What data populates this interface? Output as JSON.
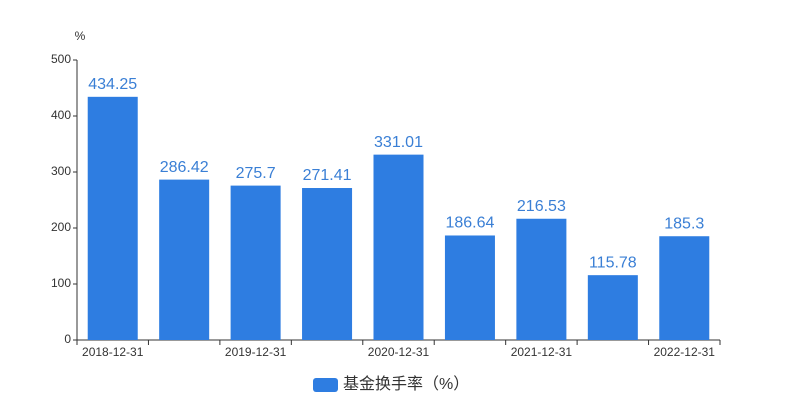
{
  "chart_data": {
    "type": "bar",
    "y_label": "%",
    "categories": [
      "2018-12-31",
      null,
      "2019-12-31",
      null,
      "2020-12-31",
      null,
      "2021-12-31",
      null,
      "2022-12-31"
    ],
    "series": [
      {
        "name": "基金换手率（%）",
        "color": "#2e7de1",
        "values": [
          434.25,
          286.42,
          275.7,
          271.41,
          331.01,
          186.64,
          216.53,
          115.78,
          185.3
        ]
      }
    ],
    "ylim": [
      0,
      500
    ],
    "yticks": [
      0,
      100,
      200,
      300,
      400,
      500
    ],
    "grid": false,
    "legend": "bottom"
  }
}
